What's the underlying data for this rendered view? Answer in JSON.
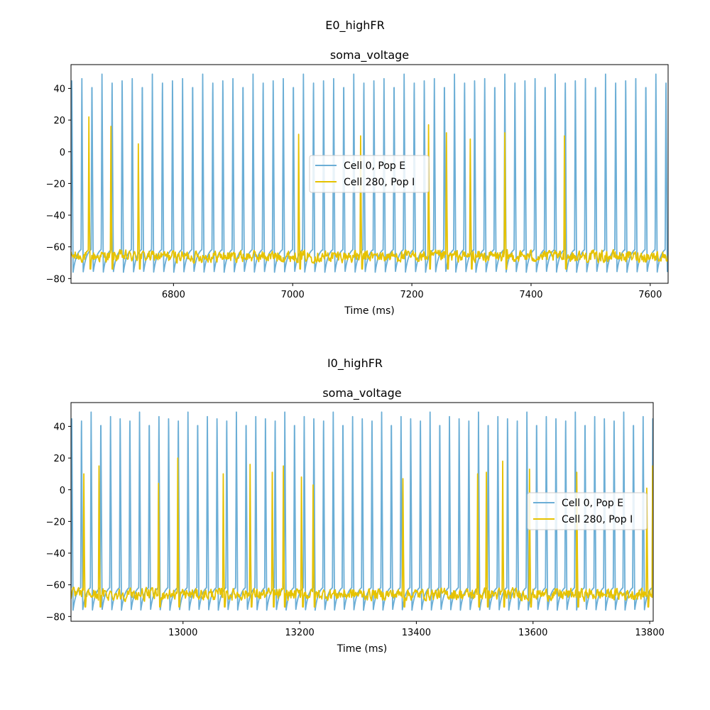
{
  "figures": [
    {
      "suptitle": "E0_highFR"
    },
    {
      "suptitle": "I0_highFR"
    }
  ],
  "colors": {
    "e_trace": "#6baed6",
    "i_trace": "#e6c200"
  },
  "chart_data": [
    {
      "type": "line",
      "title": "soma_voltage",
      "xlabel": "Time (ms)",
      "ylabel": "",
      "xlim": [
        6628,
        7630
      ],
      "ylim": [
        -83,
        55
      ],
      "xticks": [
        6800,
        7000,
        7200,
        7400,
        7600
      ],
      "yticks": [
        40,
        20,
        0,
        -20,
        -40,
        -60,
        -80
      ],
      "grid": false,
      "legend_loc": "center",
      "series": [
        {
          "name": "Cell 0, Pop E",
          "color": "#6baed6",
          "kind": "regular_spiking",
          "t_start": 6628,
          "isi_ms": 16.9,
          "spike_peak_mV": 49,
          "trough_mV": -76
        },
        {
          "name": "Cell 280, Pop I",
          "color": "#e6c200",
          "kind": "noisy_sparse",
          "baseline_mV": -66,
          "noise_mV": 5,
          "spikes": [
            {
              "t": 6658,
              "peak": 22
            },
            {
              "t": 6695,
              "peak": 16
            },
            {
              "t": 6741,
              "peak": 5
            },
            {
              "t": 7010,
              "peak": 11
            },
            {
              "t": 7114,
              "peak": 10
            },
            {
              "t": 7228,
              "peak": 17
            },
            {
              "t": 7258,
              "peak": 12
            },
            {
              "t": 7298,
              "peak": 8
            },
            {
              "t": 7356,
              "peak": 12
            },
            {
              "t": 7456,
              "peak": 10
            }
          ]
        }
      ]
    },
    {
      "type": "line",
      "title": "soma_voltage",
      "xlabel": "Time (ms)",
      "ylabel": "",
      "xlim": [
        12808,
        13806
      ],
      "ylim": [
        -83,
        55
      ],
      "xticks": [
        13000,
        13200,
        13400,
        13600,
        13800
      ],
      "yticks": [
        40,
        20,
        0,
        -20,
        -40,
        -60,
        -80
      ],
      "grid": false,
      "legend_loc": "center right",
      "series": [
        {
          "name": "Cell 0, Pop E",
          "color": "#6baed6",
          "kind": "regular_spiking",
          "t_start": 12808,
          "isi_ms": 16.6,
          "spike_peak_mV": 49,
          "trough_mV": -76
        },
        {
          "name": "Cell 280, Pop I",
          "color": "#e6c200",
          "kind": "noisy_sparse",
          "baseline_mV": -66,
          "noise_mV": 5,
          "spikes": [
            {
              "t": 12830,
              "peak": 10
            },
            {
              "t": 12856,
              "peak": 15
            },
            {
              "t": 12958,
              "peak": 4
            },
            {
              "t": 12991,
              "peak": 20
            },
            {
              "t": 13069,
              "peak": 10
            },
            {
              "t": 13115,
              "peak": 16
            },
            {
              "t": 13153,
              "peak": 11
            },
            {
              "t": 13172,
              "peak": 15
            },
            {
              "t": 13203,
              "peak": 8
            },
            {
              "t": 13223,
              "peak": 3
            },
            {
              "t": 13377,
              "peak": 7
            },
            {
              "t": 13505,
              "peak": 10
            },
            {
              "t": 13520,
              "peak": 11
            },
            {
              "t": 13548,
              "peak": 18
            },
            {
              "t": 13594,
              "peak": 13
            },
            {
              "t": 13675,
              "peak": 11
            },
            {
              "t": 13795,
              "peak": 1
            },
            {
              "t": 13805,
              "peak": 15
            }
          ]
        }
      ]
    }
  ]
}
